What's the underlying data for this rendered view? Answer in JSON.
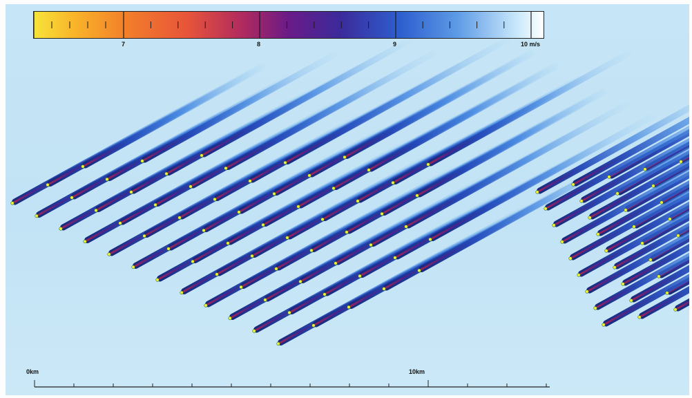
{
  "colorbar": {
    "label_min": "7",
    "label_mid1": "8",
    "label_mid2": "9",
    "label_max": "10 m/s",
    "colors": [
      "#f7e33a",
      "#f9b42a",
      "#f27f2a",
      "#e8553a",
      "#b02a5e",
      "#6a1b88",
      "#3c2a9a",
      "#2e5fcf",
      "#5d9ae6",
      "#cbe9fb",
      "#ffffff"
    ]
  },
  "scalebar": {
    "start_label": "0km",
    "mid_label": "10km"
  },
  "map": {
    "background_color": "#c4e4f5",
    "wake_color": "#1f56c6",
    "turbine_dot_color": "#f1ef3a"
  }
}
